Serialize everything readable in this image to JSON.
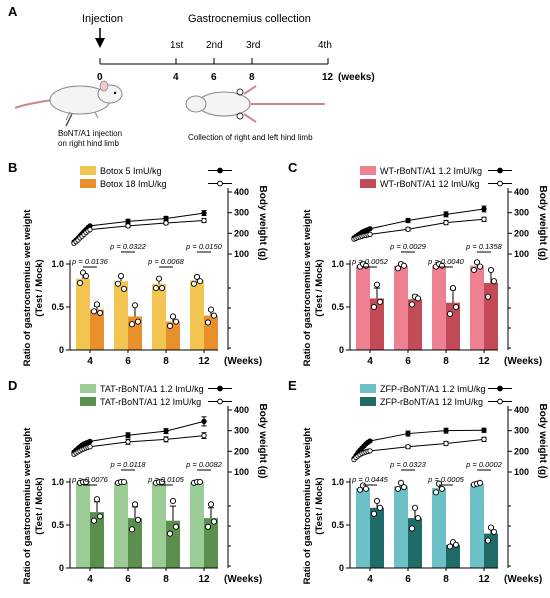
{
  "schematic": {
    "panel_label": "A",
    "injection_label": "Injection",
    "collection_label": "Gastrocnemius collection",
    "timepoint_labels": [
      "1st",
      "2nd",
      "3rd",
      "4th"
    ],
    "timeline_ticks": [
      "0",
      "4",
      "6",
      "8",
      "12"
    ],
    "timeline_unit": "(weeks)",
    "caption_left": [
      "BoNT/A1 injection",
      "on right hind limb"
    ],
    "caption_right": "Collection of right and left hind limb"
  },
  "chart_data": [
    {
      "panel": "B",
      "type": "bar",
      "categories": [
        "4",
        "6",
        "8",
        "12"
      ],
      "xlabel": "(Weeks)",
      "ylabel_lines": [
        "Ratio of gastrocnemius wet weight",
        "(Test / Mock)"
      ],
      "y2label": "Body weight (g)",
      "left_ticks": [
        "0",
        "0.5",
        "1.0"
      ],
      "right_ticks": [
        "100",
        "200",
        "300",
        "400"
      ],
      "ylim": [
        0,
        1.0
      ],
      "y2lim": [
        100,
        400
      ],
      "series": [
        {
          "name": "Botox 5 ImU/kg",
          "color": "#f2c451",
          "values": [
            0.83,
            0.8,
            0.77,
            0.81
          ],
          "errors": [
            0.06,
            0.05,
            0.05,
            0.05
          ],
          "points": [
            [
              0.78,
              0.9,
              0.86
            ],
            [
              0.77,
              0.86,
              0.71
            ],
            [
              0.72,
              0.83,
              0.72
            ],
            [
              0.77,
              0.85,
              0.8
            ]
          ]
        },
        {
          "name": "Botox 18 ImU/kg",
          "color": "#e8902b",
          "values": [
            0.47,
            0.39,
            0.33,
            0.4
          ],
          "errors": [
            0.04,
            0.13,
            0.05,
            0.07
          ],
          "points": [
            [
              0.45,
              0.53,
              0.43
            ],
            [
              0.3,
              0.52,
              0.33
            ],
            [
              0.28,
              0.39,
              0.33
            ],
            [
              0.32,
              0.47,
              0.4
            ]
          ]
        }
      ],
      "bodyweight": [
        {
          "name": "Botox 5 ImU/kg",
          "marker": "filled",
          "x": [
            0,
            0.5,
            1,
            1.5,
            2,
            2.5,
            3,
            3.5,
            4,
            6,
            8,
            12
          ],
          "values": [
            158,
            167,
            176,
            188,
            198,
            208,
            218,
            228,
            236,
            258,
            272,
            298
          ],
          "errors": [
            0,
            0,
            0,
            0,
            0,
            0,
            0,
            0,
            0,
            10,
            10,
            12
          ]
        },
        {
          "name": "Botox 18 ImU/kg",
          "marker": "open",
          "x": [
            0,
            0.5,
            1,
            1.5,
            2,
            2.5,
            3,
            3.5,
            4,
            6,
            8,
            12
          ],
          "values": [
            152,
            160,
            168,
            178,
            186,
            195,
            204,
            212,
            218,
            236,
            250,
            262
          ],
          "errors": [
            0,
            0,
            0,
            0,
            0,
            0,
            0,
            0,
            0,
            8,
            8,
            10
          ]
        }
      ],
      "pvalues": [
        "p = 0.0136",
        "p = 0.0322",
        "p = 0.0068",
        "p = 0.0150"
      ]
    },
    {
      "panel": "C",
      "type": "bar",
      "categories": [
        "4",
        "6",
        "8",
        "12"
      ],
      "xlabel": "(Weeks)",
      "ylabel_lines": [
        "Ratio of gastrocnemius wet weight",
        "(Test / Mock)"
      ],
      "y2label": "Body weight (g)",
      "left_ticks": [
        "0",
        "0.5",
        "1.0"
      ],
      "right_ticks": [
        "100",
        "200",
        "300",
        "400"
      ],
      "ylim": [
        0,
        1.0
      ],
      "y2lim": [
        100,
        400
      ],
      "series": [
        {
          "name": "WT-rBoNT/A1 1.2 ImU/kg",
          "color": "#ee8191",
          "values": [
            0.98,
            0.98,
            0.98,
            0.98
          ],
          "errors": [
            0.02,
            0.03,
            0.02,
            0.05
          ],
          "points": [
            [
              0.97,
              1.0,
              0.98
            ],
            [
              0.95,
              1.0,
              0.98
            ],
            [
              0.97,
              1.0,
              0.98
            ],
            [
              0.93,
              1.02,
              0.97
            ]
          ]
        },
        {
          "name": "WT-rBoNT/A1 12 ImU/kg",
          "color": "#c34a57",
          "values": [
            0.6,
            0.59,
            0.55,
            0.78
          ],
          "errors": [
            0.12,
            0.05,
            0.15,
            0.16
          ],
          "points": [
            [
              0.5,
              0.76,
              0.56
            ],
            [
              0.53,
              0.62,
              0.6
            ],
            [
              0.42,
              0.72,
              0.5
            ],
            [
              0.62,
              0.93,
              0.8
            ]
          ]
        }
      ],
      "bodyweight": [
        {
          "name": "WT-rBoNT/A1 1.2 ImU/kg",
          "marker": "filled",
          "x": [
            0,
            0.5,
            1,
            1.5,
            2,
            2.5,
            3,
            3.5,
            4,
            6,
            8,
            12
          ],
          "values": [
            178,
            185,
            192,
            198,
            205,
            210,
            214,
            218,
            222,
            262,
            292,
            318
          ],
          "errors": [
            0,
            0,
            0,
            0,
            0,
            0,
            0,
            0,
            0,
            10,
            12,
            14
          ]
        },
        {
          "name": "WT-rBoNT/A1 12 ImU/kg",
          "marker": "open",
          "x": [
            0,
            0.5,
            1,
            1.5,
            2,
            2.5,
            3,
            3.5,
            4,
            6,
            8,
            12
          ],
          "values": [
            172,
            176,
            180,
            183,
            186,
            189,
            191,
            193,
            195,
            220,
            252,
            268
          ],
          "errors": [
            0,
            0,
            0,
            0,
            0,
            0,
            0,
            0,
            0,
            8,
            10,
            10
          ]
        }
      ],
      "pvalues": [
        "p = 0.0052",
        "p = 0.0029",
        "p = 0.0040",
        "p = 0.1358"
      ]
    },
    {
      "panel": "D",
      "type": "bar",
      "categories": [
        "4",
        "6",
        "8",
        "12"
      ],
      "xlabel": "(Weeks)",
      "ylabel_lines": [
        "Ratio of gastrocnemius wet weight",
        "(Test / Mock)"
      ],
      "y2label": "Body weight (g)",
      "left_ticks": [
        "0",
        "0.5",
        "1.0"
      ],
      "right_ticks": [
        "100",
        "200",
        "300",
        "400"
      ],
      "ylim": [
        0,
        1.0
      ],
      "y2lim": [
        100,
        400
      ],
      "series": [
        {
          "name": "TAT-rBoNT/A1 1.2 ImU/kg",
          "color": "#9ccc96",
          "values": [
            1.0,
            1.0,
            1.0,
            1.0
          ],
          "errors": [
            0.01,
            0.01,
            0.01,
            0.01
          ],
          "points": [
            [
              0.99,
              1.0,
              1.0
            ],
            [
              0.99,
              1.0,
              1.0
            ],
            [
              0.99,
              1.0,
              1.0
            ],
            [
              0.99,
              1.0,
              1.0
            ]
          ]
        },
        {
          "name": "TAT-rBoNT/A1 12 ImU/kg",
          "color": "#5a8f4e",
          "values": [
            0.65,
            0.58,
            0.55,
            0.58
          ],
          "errors": [
            0.12,
            0.13,
            0.17,
            0.12
          ],
          "points": [
            [
              0.55,
              0.8,
              0.6
            ],
            [
              0.45,
              0.74,
              0.56
            ],
            [
              0.4,
              0.78,
              0.48
            ],
            [
              0.48,
              0.74,
              0.54
            ]
          ]
        }
      ],
      "bodyweight": [
        {
          "name": "TAT-rBoNT/A1 1.2 ImU/kg",
          "marker": "filled",
          "x": [
            0,
            0.5,
            1,
            1.5,
            2,
            2.5,
            3,
            3.5,
            4,
            6,
            8,
            12
          ],
          "values": [
            196,
            205,
            214,
            222,
            230,
            236,
            240,
            244,
            248,
            278,
            298,
            345
          ],
          "errors": [
            0,
            0,
            0,
            0,
            0,
            0,
            0,
            0,
            0,
            12,
            12,
            22
          ]
        },
        {
          "name": "TAT-rBoNT/A1 12 ImU/kg",
          "marker": "open",
          "x": [
            0,
            0.5,
            1,
            1.5,
            2,
            2.5,
            3,
            3.5,
            4,
            6,
            8,
            12
          ],
          "values": [
            186,
            192,
            198,
            203,
            208,
            212,
            216,
            220,
            222,
            246,
            258,
            276
          ],
          "errors": [
            0,
            0,
            0,
            0,
            0,
            0,
            0,
            0,
            0,
            12,
            12,
            14
          ]
        }
      ],
      "pvalues": [
        "p = 0.0076",
        "p = 0.0118",
        "p = 0.0105",
        "p = 0.0082"
      ]
    },
    {
      "panel": "E",
      "type": "bar",
      "categories": [
        "4",
        "6",
        "8",
        "12"
      ],
      "xlabel": "(Weeks)",
      "ylabel_lines": [
        "Ratio of gastrocnemius wet weight",
        "(Test / Mock)"
      ],
      "y2label": "Body weight (g)",
      "left_ticks": [
        "0",
        "0.5",
        "1.0"
      ],
      "right_ticks": [
        "100",
        "200",
        "300",
        "400"
      ],
      "ylim": [
        0,
        1.0
      ],
      "y2lim": [
        100,
        400
      ],
      "series": [
        {
          "name": "ZFP-rBoNT/A1 1.2 ImU/kg",
          "color": "#6cc0c6",
          "values": [
            0.93,
            0.95,
            0.93,
            0.98
          ],
          "errors": [
            0.03,
            0.04,
            0.05,
            0.01
          ],
          "points": [
            [
              0.91,
              0.96,
              0.92
            ],
            [
              0.92,
              0.99,
              0.94
            ],
            [
              0.88,
              0.98,
              0.92
            ],
            [
              0.97,
              0.98,
              0.99
            ]
          ]
        },
        {
          "name": "ZFP-rBoNT/A1 12 ImU/kg",
          "color": "#1f6b68",
          "values": [
            0.7,
            0.58,
            0.27,
            0.4
          ],
          "errors": [
            0.08,
            0.12,
            0.03,
            0.08
          ],
          "points": [
            [
              0.63,
              0.78,
              0.7
            ],
            [
              0.46,
              0.7,
              0.58
            ],
            [
              0.25,
              0.3,
              0.27
            ],
            [
              0.32,
              0.47,
              0.42
            ]
          ]
        }
      ],
      "bodyweight": [
        {
          "name": "ZFP-rBoNT/A1 1.2 ImU/kg",
          "marker": "filled",
          "x": [
            0,
            0.5,
            1,
            1.5,
            2,
            2.5,
            3,
            3.5,
            4,
            6,
            8,
            12
          ],
          "values": [
            165,
            180,
            194,
            206,
            216,
            226,
            236,
            244,
            250,
            286,
            300,
            302
          ],
          "errors": [
            0,
            0,
            0,
            0,
            0,
            0,
            0,
            0,
            0,
            12,
            12,
            10
          ]
        },
        {
          "name": "ZFP-rBoNT/A1 12 ImU/kg",
          "marker": "open",
          "x": [
            0,
            0.5,
            1,
            1.5,
            2,
            2.5,
            3,
            3.5,
            4,
            6,
            8,
            12
          ],
          "values": [
            160,
            170,
            178,
            184,
            190,
            194,
            197,
            200,
            202,
            222,
            238,
            258
          ],
          "errors": [
            0,
            0,
            0,
            0,
            0,
            0,
            0,
            0,
            0,
            8,
            10,
            10
          ]
        }
      ],
      "pvalues": [
        "p = 0.0445",
        "p = 0.0323",
        "p = 0.0005",
        "p = 0.0002"
      ]
    }
  ]
}
